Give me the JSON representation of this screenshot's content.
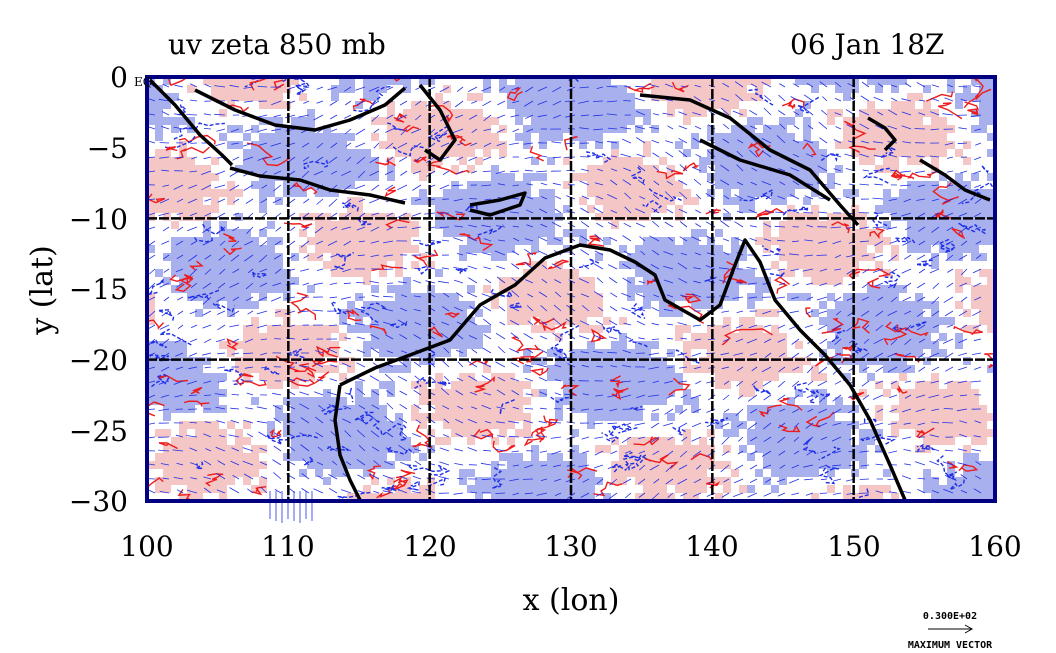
{
  "plot": {
    "title_left": "uv zeta 850 mb",
    "title_right": "06 Jan 18Z",
    "corner_label": "EQ",
    "xlabel": "x (lon)",
    "ylabel": "y (lat)",
    "x_ticks": [
      "100",
      "110",
      "120",
      "130",
      "140",
      "150",
      "160"
    ],
    "y_ticks": [
      "0",
      "−5",
      "−10",
      "−15",
      "−20",
      "−25",
      "−30"
    ],
    "x_range": [
      100,
      160
    ],
    "y_range": [
      0,
      -30
    ],
    "grid_lon": [
      110,
      120,
      130,
      140,
      150
    ],
    "grid_lat": [
      -10,
      -20
    ],
    "vector_key": {
      "value": "0.300E+02",
      "label": "MAXIMUM VECTOR"
    }
  },
  "colors": {
    "positive_fill": "#f4c6c6",
    "positive_line": "#ee1c1c",
    "negative_fill": "#a8b0ee",
    "negative_line": "#1f2fe8",
    "vector": "#1f2fe8",
    "coastline": "#000000",
    "frame": "#000080"
  }
}
